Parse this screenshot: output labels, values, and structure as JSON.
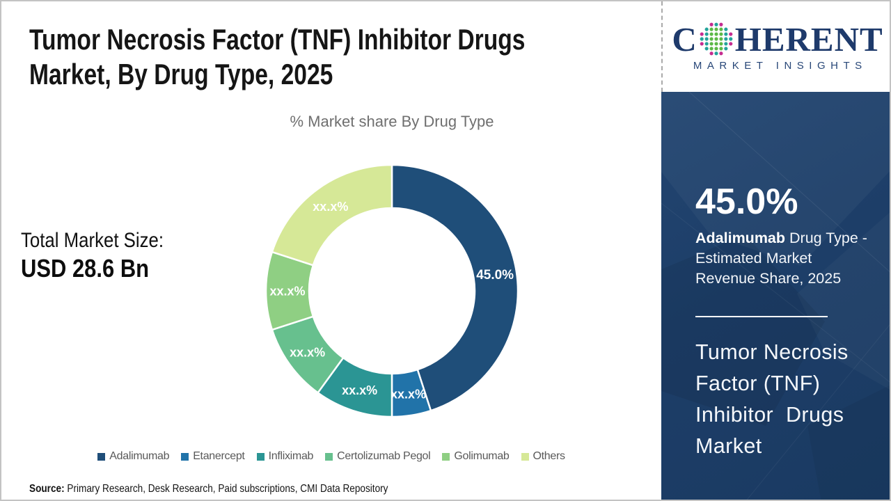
{
  "page": {
    "title_line1": "Tumor Necrosis Factor (TNF) Inhibitor Drugs",
    "title_line2": "Market, By Drug Type, 2025"
  },
  "total_market": {
    "label": "Total Market Size:",
    "value": "USD 28.6 Bn"
  },
  "chart_data": {
    "type": "pie",
    "subtype": "donut",
    "title": "% Market share By Drug Type",
    "categories": [
      "Adalimumab",
      "Etanercept",
      "Infliximab",
      "Certolizumab Pegol",
      "Golimumab",
      "Others"
    ],
    "values": [
      45.0,
      5.0,
      10.0,
      10.0,
      10.0,
      20.0
    ],
    "value_labels": [
      "45.0%",
      "xx.x%",
      "xx.x%",
      "xx.x%",
      "xx.x%",
      "xx.x%"
    ],
    "colors": [
      "#1f4e79",
      "#2173a9",
      "#2b9594",
      "#67c08e",
      "#8fcf83",
      "#d6e897"
    ],
    "start_angle_deg": 0,
    "inner_radius_ratio": 0.66,
    "legend_position": "bottom",
    "grid": false
  },
  "source": {
    "label": "Source:",
    "text": " Primary Research, Desk Research, Paid subscriptions, CMI Data Repository"
  },
  "logo": {
    "word_start": "C",
    "word_end": "HERENT",
    "tagline": "MARKET INSIGHTS",
    "brand_navy": "#1e3a6b",
    "globe_colors": {
      "teal": "#23a39b",
      "green": "#5cb947",
      "magenta": "#c52c90"
    }
  },
  "sidebar": {
    "background": "#1d3e68",
    "stat_value": "45.0%",
    "desc_bold": "Adalimumab",
    "desc_line1_rest": " Drug Type -",
    "desc_line2": "Estimated Market",
    "desc_line3": "Revenue Share, 2025",
    "market_title_lines": [
      "Tumor Necrosis",
      "Factor (TNF)",
      "Inhibitor Drugs",
      "Market"
    ]
  }
}
